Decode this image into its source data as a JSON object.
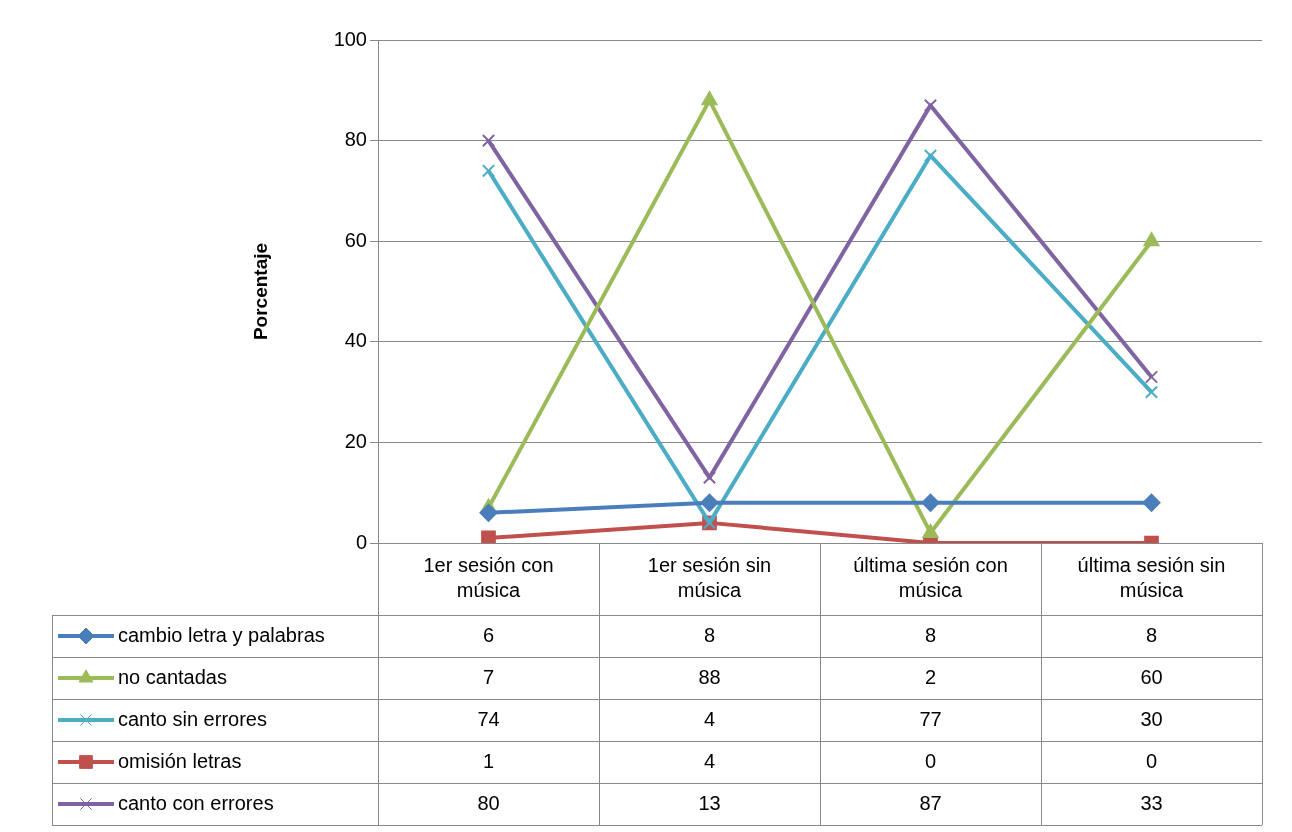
{
  "chart_data": {
    "type": "line",
    "ylabel": "Porcentaje",
    "categories": [
      "1er sesión con música",
      "1er sesión sin música",
      "última sesión con música",
      "última sesión sin música"
    ],
    "series": [
      {
        "name": "cambio letra y palabras",
        "color": "#4a7ebb",
        "marker": "diamond",
        "values": [
          6,
          8,
          8,
          8
        ]
      },
      {
        "name": "no cantadas",
        "color": "#9bbb59",
        "marker": "triangle",
        "values": [
          7,
          88,
          2,
          60
        ]
      },
      {
        "name": "canto sin errores",
        "color": "#4bacc6",
        "marker": "cross",
        "values": [
          74,
          4,
          77,
          30
        ]
      },
      {
        "name": "omisión letras",
        "color": "#c0504d",
        "marker": "square",
        "values": [
          1,
          4,
          0,
          0
        ]
      },
      {
        "name": "canto con errores",
        "color": "#8064a2",
        "marker": "cross",
        "values": [
          80,
          13,
          87,
          33
        ]
      }
    ],
    "ylim": [
      0,
      100
    ],
    "yticks": [
      0,
      20,
      40,
      60,
      80,
      100
    ],
    "grid": "y",
    "legend": "bottom",
    "data_labels": true
  }
}
